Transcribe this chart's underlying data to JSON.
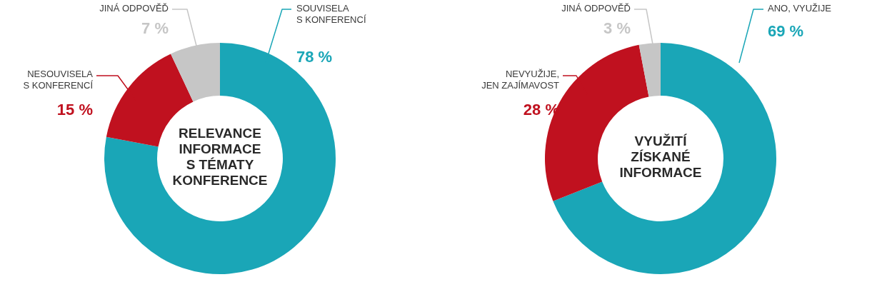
{
  "chart_data": [
    {
      "type": "donut",
      "title": "RELEVANCE\nINFORMACE\nS TÉMATY\nKONFERENCE",
      "categories": [
        "SOUVISELA\nS KONFERENCÍ",
        "NESOUVISELA\nS KONFERENCÍ",
        "JINÁ ODPOVĚĎ"
      ],
      "values": [
        78,
        15,
        7
      ],
      "colors": [
        "#1aa6b7",
        "#c0111f",
        "#c6c6c6"
      ],
      "value_labels": [
        "78 %",
        "15 %",
        "7 %"
      ]
    },
    {
      "type": "donut",
      "title": "VYUŽITÍ\nZÍSKANÉ\nINFORMACE",
      "categories": [
        "ANO, VYUŽIJE",
        "NEVYUŽIJE,\nJEN ZAJÍMAVOST",
        "JINÁ ODPOVĚĎ"
      ],
      "values": [
        69,
        28,
        3
      ],
      "colors": [
        "#1aa6b7",
        "#c0111f",
        "#c6c6c6"
      ],
      "value_labels": [
        "69 %",
        "28 %",
        "3 %"
      ]
    }
  ]
}
